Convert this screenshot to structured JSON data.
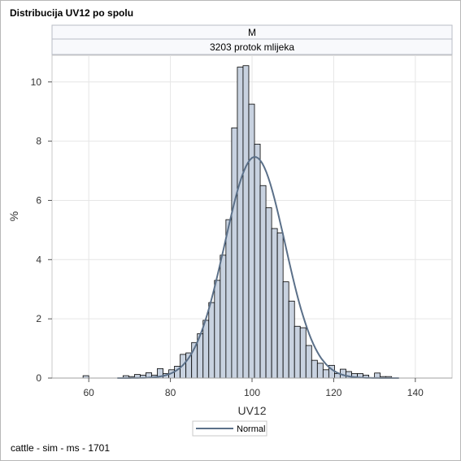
{
  "title": "Distribucija UV12 po spolu",
  "footnote": "cattle - sim - ms - 1701",
  "colors": {
    "bar_fill": "#c8d2e0",
    "bar_stroke": "#000000",
    "curve": "#5b7089",
    "grid": "#e6e6e6"
  },
  "chart_data": {
    "type": "bar",
    "panel_strips": [
      "M",
      "3203 protok mlijeka"
    ],
    "xlabel": "UV12",
    "ylabel": "%",
    "xlim": [
      51,
      149
    ],
    "ylim": [
      0,
      10.9
    ],
    "xticks": [
      60,
      80,
      100,
      120,
      140
    ],
    "yticks": [
      0,
      2,
      4,
      6,
      8,
      10
    ],
    "bin_width": 1.4,
    "bins": [
      {
        "x": 59.3,
        "y": 0.08
      },
      {
        "x": 69.1,
        "y": 0.08
      },
      {
        "x": 70.5,
        "y": 0.05
      },
      {
        "x": 71.9,
        "y": 0.12
      },
      {
        "x": 73.3,
        "y": 0.1
      },
      {
        "x": 74.7,
        "y": 0.18
      },
      {
        "x": 76.1,
        "y": 0.1
      },
      {
        "x": 77.5,
        "y": 0.32
      },
      {
        "x": 78.9,
        "y": 0.15
      },
      {
        "x": 80.3,
        "y": 0.28
      },
      {
        "x": 81.7,
        "y": 0.4
      },
      {
        "x": 83.1,
        "y": 0.8
      },
      {
        "x": 84.5,
        "y": 0.85
      },
      {
        "x": 85.9,
        "y": 1.2
      },
      {
        "x": 87.3,
        "y": 1.5
      },
      {
        "x": 88.7,
        "y": 1.95
      },
      {
        "x": 90.1,
        "y": 2.55
      },
      {
        "x": 91.5,
        "y": 3.3
      },
      {
        "x": 92.9,
        "y": 4.15
      },
      {
        "x": 94.3,
        "y": 5.35
      },
      {
        "x": 95.7,
        "y": 8.45
      },
      {
        "x": 97.1,
        "y": 10.5
      },
      {
        "x": 98.5,
        "y": 10.55
      },
      {
        "x": 99.9,
        "y": 9.25
      },
      {
        "x": 101.3,
        "y": 7.9
      },
      {
        "x": 102.7,
        "y": 6.5
      },
      {
        "x": 104.1,
        "y": 5.75
      },
      {
        "x": 105.5,
        "y": 5.05
      },
      {
        "x": 106.9,
        "y": 4.9
      },
      {
        "x": 108.3,
        "y": 3.25
      },
      {
        "x": 109.7,
        "y": 2.6
      },
      {
        "x": 111.1,
        "y": 1.75
      },
      {
        "x": 112.5,
        "y": 1.7
      },
      {
        "x": 113.9,
        "y": 1.1
      },
      {
        "x": 115.3,
        "y": 0.6
      },
      {
        "x": 116.7,
        "y": 0.5
      },
      {
        "x": 118.1,
        "y": 0.28
      },
      {
        "x": 119.5,
        "y": 0.43
      },
      {
        "x": 120.9,
        "y": 0.15
      },
      {
        "x": 122.3,
        "y": 0.3
      },
      {
        "x": 123.7,
        "y": 0.22
      },
      {
        "x": 125.1,
        "y": 0.15
      },
      {
        "x": 126.5,
        "y": 0.15
      },
      {
        "x": 127.9,
        "y": 0.1
      },
      {
        "x": 130.7,
        "y": 0.17
      },
      {
        "x": 132.1,
        "y": 0.05
      },
      {
        "x": 133.5,
        "y": 0.05
      }
    ],
    "series": [
      {
        "name": "Normal",
        "type": "line",
        "mean": 100.7,
        "sd": 7.4,
        "peak": 7.47,
        "x_range": [
          67,
          136
        ]
      }
    ],
    "legend": {
      "entries": [
        "Normal"
      ],
      "position": "bottom-center"
    },
    "grid": true
  }
}
